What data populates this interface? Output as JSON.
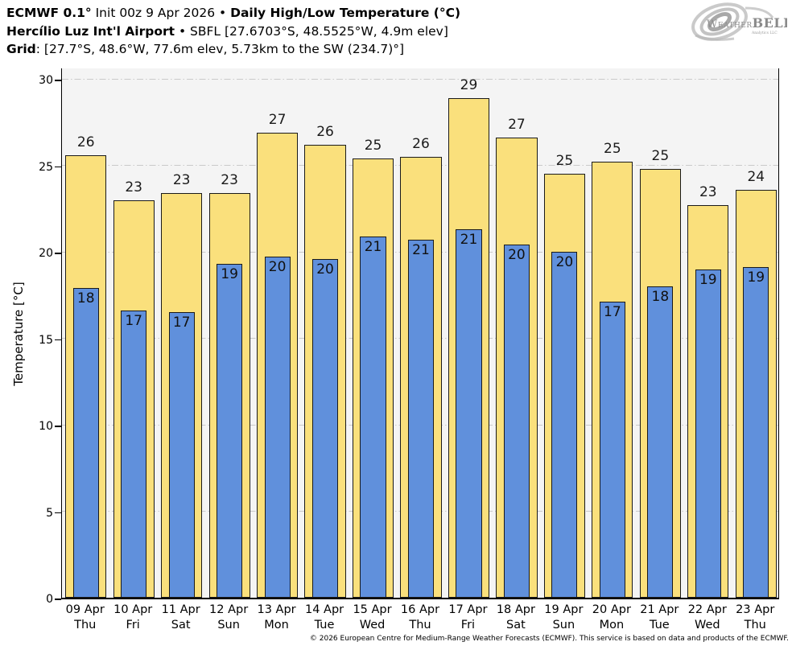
{
  "header": {
    "title_model": "ECMWF 0.1°",
    "title_init": " Init 00z 9 Apr 2026 • ",
    "title_product": "Daily High/Low Temperature (°C)",
    "station_name": "Hercílio Luz Int'l Airport",
    "station_sep": " • ",
    "station_details": "SBFL [27.6703°S, 48.5525°W, 4.9m elev]",
    "grid_label": "Grid",
    "grid_details": ": [27.7°S, 48.6°W, 77.6m elev, 5.73km to the SW (234.7)°]"
  },
  "logo": {
    "weather": "Weather",
    "bell": "BELL",
    "sub": "Analytics LLC"
  },
  "chart_data": {
    "type": "bar",
    "title": "Daily High/Low Temperature (°C)",
    "ylabel": "Temperature [°C]",
    "ylim": [
      0,
      30.7
    ],
    "yticks": [
      0,
      5,
      10,
      15,
      20,
      25,
      30
    ],
    "grid": "horizontal dash-dot gridlines at yticks, light gray",
    "legend_position": "none",
    "categories_date": [
      "09 Apr",
      "10 Apr",
      "11 Apr",
      "12 Apr",
      "13 Apr",
      "14 Apr",
      "15 Apr",
      "16 Apr",
      "17 Apr",
      "18 Apr",
      "19 Apr",
      "20 Apr",
      "21 Apr",
      "22 Apr",
      "23 Apr"
    ],
    "categories_day": [
      "Thu",
      "Fri",
      "Sat",
      "Sun",
      "Mon",
      "Tue",
      "Wed",
      "Thu",
      "Fri",
      "Sat",
      "Sun",
      "Mon",
      "Tue",
      "Wed",
      "Thu"
    ],
    "series": [
      {
        "name": "Daily High",
        "labels": [
          26,
          23,
          23,
          23,
          27,
          26,
          25,
          26,
          29,
          27,
          25,
          25,
          25,
          23,
          24
        ],
        "values": [
          25.6,
          23.0,
          23.4,
          23.4,
          26.9,
          26.2,
          25.4,
          25.5,
          28.9,
          26.6,
          24.5,
          25.2,
          24.8,
          22.7,
          23.6
        ]
      },
      {
        "name": "Daily Low",
        "labels": [
          18,
          17,
          17,
          19,
          20,
          20,
          21,
          21,
          21,
          20,
          20,
          17,
          18,
          19,
          19
        ],
        "values": [
          17.9,
          16.6,
          16.5,
          19.3,
          19.7,
          19.6,
          20.9,
          20.7,
          21.3,
          20.4,
          20.0,
          17.1,
          18.0,
          19.0,
          19.1
        ]
      }
    ]
  },
  "colors": {
    "high_bar": "#fae07c",
    "low_bar": "#6090dc",
    "bar_outline": "#1a1a1a",
    "plot_bg": "#f4f4f4",
    "gridline": "#c9c9c9",
    "logo_gray": "#9c9c9c"
  },
  "footer": {
    "copyright": "© 2026 European Centre for Medium-Range Weather Forecasts (ECMWF). This service is based on data and products of the ECMWF."
  }
}
